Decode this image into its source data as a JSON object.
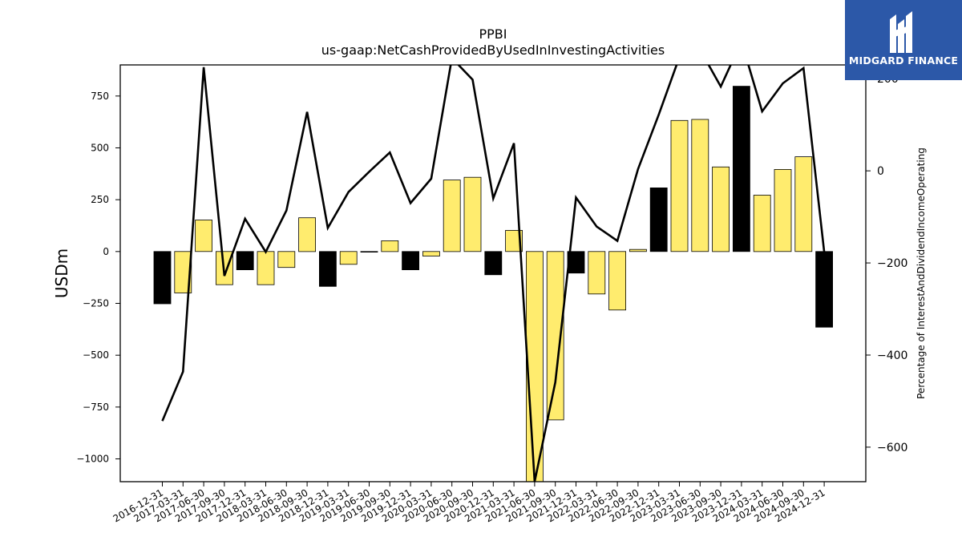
{
  "chart_data": {
    "type": "bar",
    "title": "PPBI",
    "subtitle": "us-gaap:NetCashProvidedByUsedInInvestingActivities",
    "ylabel": "USDm",
    "y2label": "Percentage of InterestAndDividendIncomeOperating",
    "ylim": [
      -1110,
      900
    ],
    "y2lim": [
      -675,
      230
    ],
    "yticks": [
      -1000,
      -750,
      -500,
      -250,
      0,
      250,
      500,
      750
    ],
    "y2ticks": [
      -600,
      -400,
      -200,
      0,
      200
    ],
    "categories": [
      "2016-12-31",
      "2017-03-31",
      "2017-06-30",
      "2017-09-30",
      "2017-12-31",
      "2018-03-31",
      "2018-06-30",
      "2018-09-30",
      "2018-12-31",
      "2019-03-31",
      "2019-06-30",
      "2019-09-30",
      "2019-12-31",
      "2020-03-31",
      "2020-06-30",
      "2020-09-30",
      "2020-12-31",
      "2021-03-31",
      "2021-06-30",
      "2021-09-30",
      "2021-12-31",
      "2022-03-31",
      "2022-06-30",
      "2022-09-30",
      "2022-12-31",
      "2023-03-31",
      "2023-06-30",
      "2023-09-30",
      "2023-12-31",
      "2024-03-31",
      "2024-06-30",
      "2024-09-30",
      "2024-12-31"
    ],
    "series": [
      {
        "type": "bar",
        "values": [
          -252,
          -200,
          152,
          -160,
          -88,
          -160,
          -77,
          163,
          -168,
          -62,
          -3,
          52,
          -88,
          -22,
          345,
          358,
          -112,
          102,
          -1110,
          -812,
          -104,
          -205,
          -282,
          10,
          307,
          632,
          637,
          408,
          797,
          272,
          396,
          457,
          -365
        ],
        "colors": [
          "#000000",
          "#ffec6e",
          "#ffec6e",
          "#ffec6e",
          "#000000",
          "#ffec6e",
          "#ffec6e",
          "#ffec6e",
          "#000000",
          "#ffec6e",
          "#ffec6e",
          "#ffec6e",
          "#000000",
          "#ffec6e",
          "#ffec6e",
          "#ffec6e",
          "#000000",
          "#ffec6e",
          "#ffec6e",
          "#ffec6e",
          "#000000",
          "#ffec6e",
          "#ffec6e",
          "#ffec6e",
          "#000000",
          "#ffec6e",
          "#ffec6e",
          "#ffec6e",
          "#000000",
          "#ffec6e",
          "#ffec6e",
          "#ffec6e",
          "#000000"
        ]
      },
      {
        "type": "line",
        "axis": "right",
        "color": "#000000",
        "values": [
          -543,
          -436,
          225,
          -228,
          -104,
          -176,
          -86,
          128,
          -124,
          -46,
          -2,
          40,
          -70,
          -17,
          245,
          198,
          -60,
          60,
          -675,
          -459,
          -58,
          -121,
          -152,
          4,
          122,
          247,
          263,
          183,
          281,
          129,
          190,
          223,
          -176
        ]
      }
    ],
    "legend": "none",
    "grid": false
  },
  "watermark": {
    "text": "MIDGARD FINANCE",
    "bg_color": "#2c58a8"
  }
}
